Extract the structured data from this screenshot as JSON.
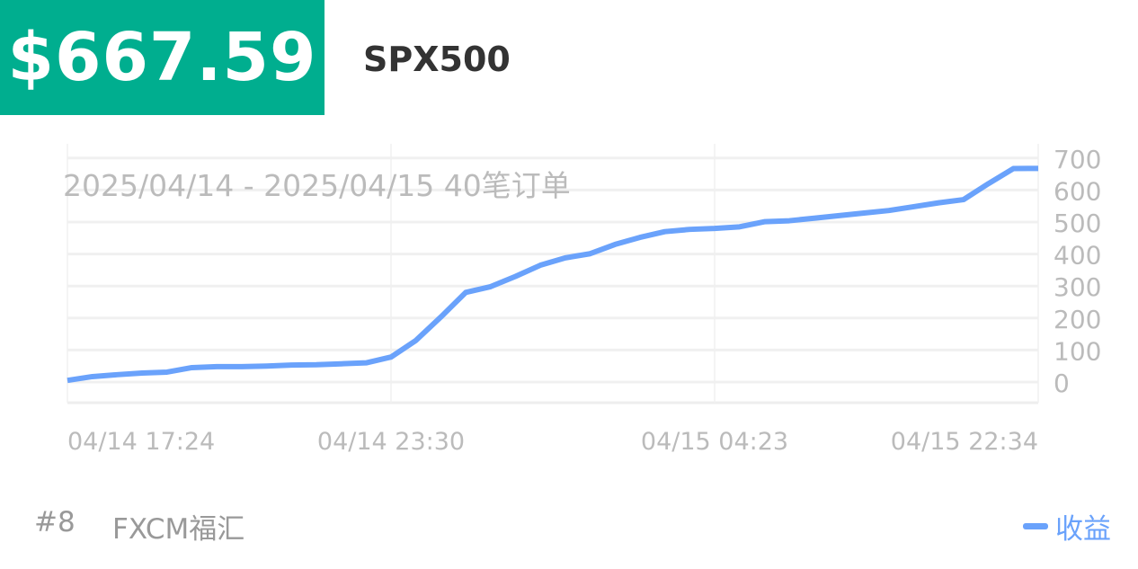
{
  "header": {
    "price": "$667.59",
    "symbol": "SPX500",
    "price_bg": "#00ae8f"
  },
  "footer": {
    "rank": "#8",
    "broker": "FXCM福汇"
  },
  "chart_data": {
    "type": "line",
    "annotation": "2025/04/14 - 2025/04/15  40笔订单",
    "x_tick_labels": [
      "04/14 17:24",
      "04/14 23:30",
      "04/15 04:23",
      "04/15 22:34"
    ],
    "y_ticks": [
      0,
      100,
      200,
      300,
      400,
      500,
      600,
      700
    ],
    "ylim": [
      -60,
      740
    ],
    "y_axis_position": "right",
    "grid": true,
    "legend_position": "bottom-right",
    "line_color": "#6aa2fb",
    "series": [
      {
        "name": "收益",
        "values": [
          5,
          17,
          23,
          28,
          31,
          45,
          48,
          48,
          50,
          53,
          54,
          57,
          60,
          78,
          130,
          203,
          280,
          298,
          330,
          365,
          388,
          401,
          430,
          452,
          470,
          477,
          480,
          485,
          501,
          504,
          512,
          520,
          528,
          536,
          548,
          560,
          570,
          620,
          667,
          667.59
        ]
      }
    ]
  }
}
